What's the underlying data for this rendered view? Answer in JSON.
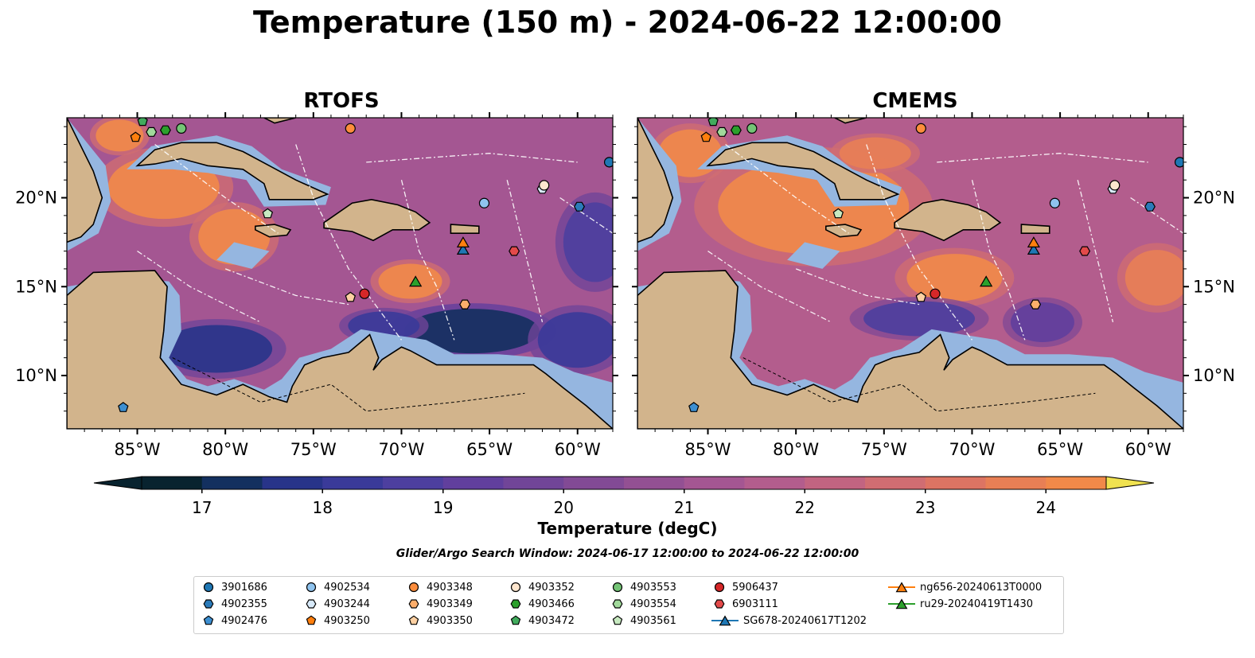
{
  "title": "Temperature (150 m) - 2024-06-22 12:00:00",
  "panels": [
    {
      "title": "RTOFS"
    },
    {
      "title": "CMEMS"
    }
  ],
  "axes": {
    "lon_ticks": [
      "85°W",
      "80°W",
      "75°W",
      "70°W",
      "65°W",
      "60°W"
    ],
    "lat_ticks": [
      "20°N",
      "15°N",
      "10°N"
    ],
    "lon_range": [
      -89,
      -58
    ],
    "lat_range": [
      7,
      24.5
    ]
  },
  "colorbar": {
    "label": "Temperature (degC)",
    "ticks": [
      "17",
      "18",
      "19",
      "20",
      "21",
      "22",
      "23",
      "24"
    ],
    "range": [
      16.5,
      24.5
    ],
    "step": 0.5,
    "colors": [
      "#08232f",
      "#13305f",
      "#283489",
      "#3a3a99",
      "#4d3f9f",
      "#613f9d",
      "#714598",
      "#824a95",
      "#935093",
      "#a45692",
      "#b35d8d",
      "#c26481",
      "#d06d72",
      "#dd7463",
      "#e87f55",
      "#f18949",
      "#f69841",
      "#f8ab3d",
      "#f4c441",
      "#f0e250"
    ],
    "land": "#d2b48c",
    "shelf": "#95b6e0"
  },
  "search_window": "Glider/Argo Search Window: 2024-06-17 12:00:00 to 2024-06-22 12:00:00",
  "floats": [
    {
      "name": "3901686",
      "marker": "circle",
      "color": "#1f77b4",
      "lon": -58.2,
      "lat": 22.0
    },
    {
      "name": "4902355",
      "marker": "hexagon",
      "color": "#2b7bba",
      "lon": -59.9,
      "lat": 19.5
    },
    {
      "name": "4902476",
      "marker": "pentagon",
      "color": "#3d8fd1",
      "lon": -85.8,
      "lat": 8.2
    },
    {
      "name": "4902534",
      "marker": "circle",
      "color": "#8fc3ee",
      "lon": -65.3,
      "lat": 19.7
    },
    {
      "name": "4903244",
      "marker": "hexagon",
      "color": "#d8eafa",
      "lon": -62.0,
      "lat": 20.5
    },
    {
      "name": "4903250",
      "marker": "pentagon",
      "color": "#ff7f0e",
      "lon": -85.1,
      "lat": 23.4
    },
    {
      "name": "4903348",
      "marker": "circle",
      "color": "#fd8d3c",
      "lon": -72.9,
      "lat": 23.9
    },
    {
      "name": "4903349",
      "marker": "hexagon",
      "color": "#fdae6b",
      "lon": -66.4,
      "lat": 14.0
    },
    {
      "name": "4903350",
      "marker": "pentagon",
      "color": "#fdd0a2",
      "lon": -72.9,
      "lat": 14.4
    },
    {
      "name": "4903352",
      "marker": "circle",
      "color": "#fee6ce",
      "lon": -61.9,
      "lat": 20.7
    },
    {
      "name": "4903466",
      "marker": "hexagon",
      "color": "#2ca02c",
      "lon": -83.4,
      "lat": 23.8
    },
    {
      "name": "4903472",
      "marker": "pentagon",
      "color": "#41ab5d",
      "lon": -84.7,
      "lat": 24.3
    },
    {
      "name": "4903553",
      "marker": "circle",
      "color": "#74c476",
      "lon": -82.5,
      "lat": 23.9
    },
    {
      "name": "4903554",
      "marker": "hexagon",
      "color": "#a1d99b",
      "lon": -84.2,
      "lat": 23.7
    },
    {
      "name": "4903561",
      "marker": "pentagon",
      "color": "#c7e9c0",
      "lon": -77.6,
      "lat": 19.1
    },
    {
      "name": "5906437",
      "marker": "circle",
      "color": "#d62728",
      "lon": -72.1,
      "lat": 14.6
    },
    {
      "name": "6903111",
      "marker": "hexagon",
      "color": "#e34a4a",
      "lon": -63.6,
      "lat": 17.0
    }
  ],
  "gliders": [
    {
      "name": "SG678-20240617T1202",
      "color": "#1f77b4",
      "lon": -66.5,
      "lat": 17.1
    },
    {
      "name": "ng656-20240613T0000",
      "color": "#ff7f0e",
      "lon": -66.5,
      "lat": 17.5
    },
    {
      "name": "ru29-20240419T1430",
      "color": "#2ca02c",
      "lon": -69.2,
      "lat": 15.3
    }
  ]
}
